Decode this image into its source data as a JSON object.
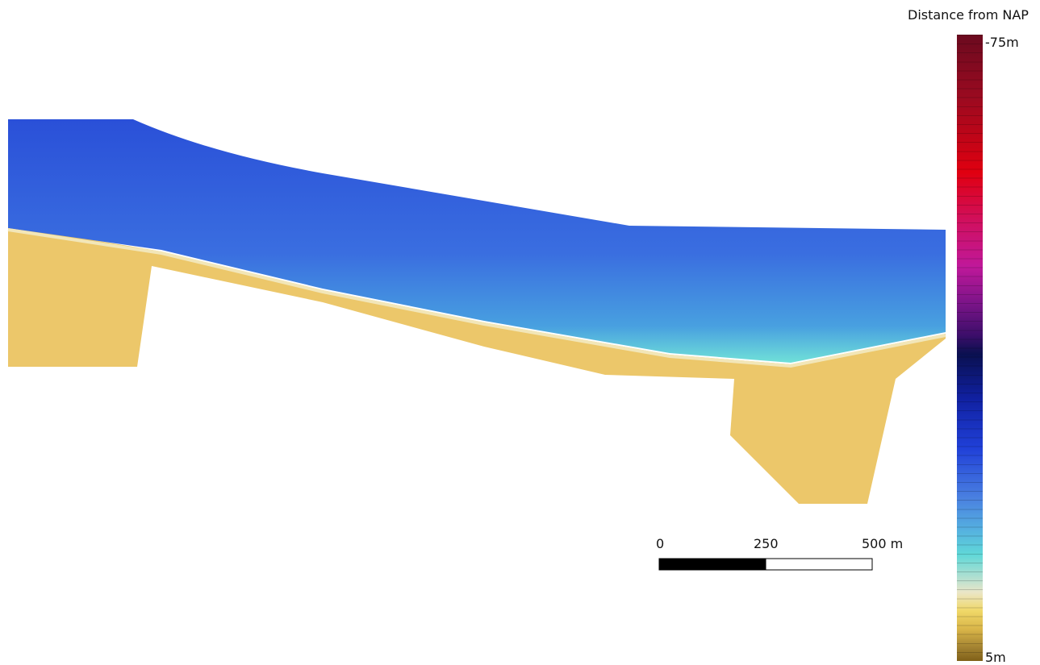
{
  "legend": {
    "title": "Distance from NAP",
    "max_label": "-75m",
    "min_label": "5m"
  },
  "scale_bar": {
    "labels": [
      "0",
      "250",
      "500 m"
    ]
  }
}
